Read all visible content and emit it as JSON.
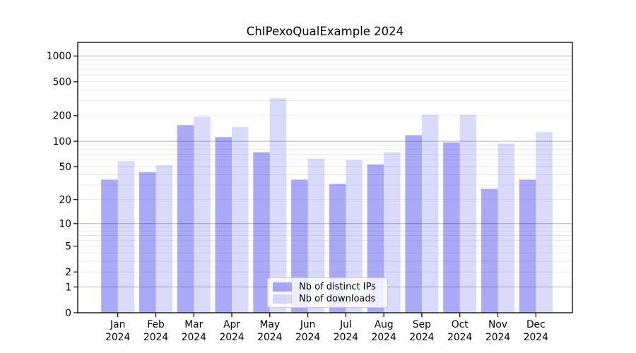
{
  "chart_data": {
    "type": "bar",
    "title": "ChIPexoQualExample 2024",
    "categories": [
      "Jan 2024",
      "Feb 2024",
      "Mar 2024",
      "Apr 2024",
      "May 2024",
      "Jun 2024",
      "Jul 2024",
      "Aug 2024",
      "Sep 2024",
      "Oct 2024",
      "Nov 2024",
      "Dec 2024"
    ],
    "series": [
      {
        "name": "Nb of distinct IPs",
        "color": "rgba(10,10,235,0.35)",
        "values": [
          35,
          43,
          155,
          112,
          74,
          35,
          31,
          53,
          118,
          97,
          27,
          35
        ]
      },
      {
        "name": "Nb of downloads",
        "color": "rgba(10,10,235,0.15)",
        "values": [
          58,
          52,
          195,
          147,
          320,
          62,
          60,
          74,
          205,
          205,
          94,
          128
        ]
      }
    ],
    "xlabel": "",
    "ylabel": "",
    "yscale": "log1p",
    "ylim": [
      0,
      1450
    ],
    "yticks": [
      0,
      1,
      2,
      5,
      10,
      20,
      50,
      100,
      200,
      500,
      1000
    ],
    "grid": {
      "on": true,
      "major_values": [
        1,
        10,
        100,
        1000
      ],
      "minor_values": [
        2,
        3,
        4,
        5,
        6,
        7,
        8,
        9,
        20,
        30,
        40,
        50,
        60,
        70,
        80,
        90,
        200,
        300,
        400,
        500,
        600,
        700,
        800,
        900
      ],
      "major_color": "#b4b4b4",
      "minor_color": "#e9e9e9"
    },
    "legend_position": "lower center",
    "axis_color": "#000000",
    "background_color": "#ffffff"
  }
}
